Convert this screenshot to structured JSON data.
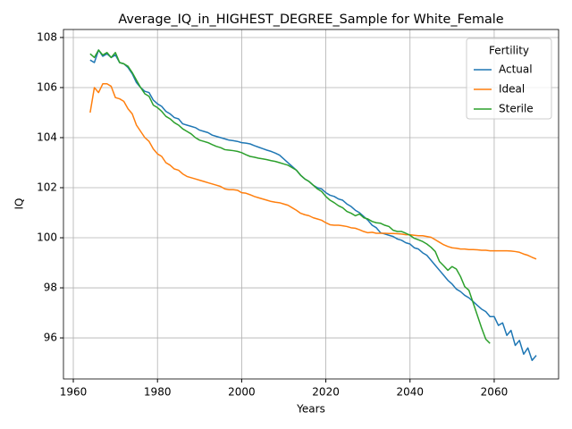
{
  "chart_data": {
    "type": "line",
    "title": "Average_IQ_in_HIGHEST_DEGREE_Sample for White_Female",
    "x_label": "Years",
    "y_label": "IQ",
    "legend_title": "Fertility",
    "legend": "upper right",
    "grid": true,
    "x": [
      1964,
      1965,
      1966,
      1967,
      1968,
      1969,
      1970,
      1971,
      1972,
      1973,
      1974,
      1975,
      1976,
      1977,
      1978,
      1979,
      1980,
      1981,
      1982,
      1983,
      1984,
      1985,
      1986,
      1987,
      1988,
      1989,
      1990,
      1991,
      1992,
      1993,
      1994,
      1995,
      1996,
      1997,
      1998,
      1999,
      2000,
      2001,
      2002,
      2003,
      2004,
      2005,
      2006,
      2007,
      2008,
      2009,
      2010,
      2011,
      2012,
      2013,
      2014,
      2015,
      2016,
      2017,
      2018,
      2019,
      2020,
      2021,
      2022,
      2023,
      2024,
      2025,
      2026,
      2027,
      2028,
      2029,
      2030,
      2031,
      2032,
      2033,
      2034,
      2035,
      2036,
      2037,
      2038,
      2039,
      2040,
      2041,
      2042,
      2043,
      2044,
      2045,
      2046,
      2047,
      2048,
      2049,
      2050,
      2051,
      2052,
      2053,
      2054,
      2055,
      2056,
      2057,
      2058,
      2059,
      2060,
      2061,
      2062,
      2063,
      2064,
      2065,
      2066,
      2067,
      2068,
      2069,
      2070
    ],
    "series": [
      {
        "name": "Actual",
        "color": "#1f77b4",
        "values": [
          107.1,
          107.0,
          107.5,
          107.25,
          107.35,
          107.2,
          107.3,
          107.0,
          106.95,
          106.8,
          106.55,
          106.2,
          106.0,
          105.85,
          105.8,
          105.5,
          105.35,
          105.25,
          105.05,
          104.95,
          104.8,
          104.75,
          104.55,
          104.5,
          104.45,
          104.4,
          104.3,
          104.25,
          104.2,
          104.1,
          104.05,
          104.0,
          103.95,
          103.9,
          103.88,
          103.85,
          103.8,
          103.78,
          103.75,
          103.68,
          103.62,
          103.56,
          103.5,
          103.45,
          103.38,
          103.3,
          103.15,
          103.0,
          102.85,
          102.7,
          102.5,
          102.35,
          102.25,
          102.1,
          102.0,
          101.95,
          101.8,
          101.7,
          101.65,
          101.55,
          101.5,
          101.35,
          101.25,
          101.1,
          101.0,
          100.85,
          100.7,
          100.5,
          100.4,
          100.2,
          100.15,
          100.1,
          100.05,
          99.95,
          99.9,
          99.8,
          99.75,
          99.6,
          99.55,
          99.4,
          99.3,
          99.1,
          98.9,
          98.7,
          98.5,
          98.3,
          98.15,
          97.95,
          97.85,
          97.7,
          97.6,
          97.45,
          97.3,
          97.15,
          97.05,
          96.85,
          96.85,
          96.5,
          96.6,
          96.1,
          96.3,
          95.7,
          95.9,
          95.35,
          95.6,
          95.1,
          95.3
        ]
      },
      {
        "name": "Ideal",
        "color": "#ff7f0e",
        "values": [
          105.0,
          106.0,
          105.8,
          106.15,
          106.15,
          106.05,
          105.6,
          105.55,
          105.45,
          105.15,
          104.95,
          104.5,
          104.25,
          104.0,
          103.85,
          103.55,
          103.35,
          103.25,
          103.0,
          102.9,
          102.75,
          102.7,
          102.55,
          102.45,
          102.4,
          102.35,
          102.3,
          102.25,
          102.2,
          102.15,
          102.1,
          102.05,
          101.95,
          101.92,
          101.92,
          101.9,
          101.8,
          101.78,
          101.72,
          101.65,
          101.6,
          101.55,
          101.5,
          101.45,
          101.42,
          101.4,
          101.35,
          101.3,
          101.2,
          101.1,
          100.98,
          100.92,
          100.88,
          100.8,
          100.75,
          100.7,
          100.6,
          100.52,
          100.5,
          100.5,
          100.48,
          100.45,
          100.4,
          100.38,
          100.32,
          100.25,
          100.2,
          100.22,
          100.18,
          100.18,
          100.18,
          100.17,
          100.17,
          100.16,
          100.15,
          100.12,
          100.12,
          100.1,
          100.08,
          100.08,
          100.05,
          100.02,
          99.92,
          99.82,
          99.72,
          99.65,
          99.6,
          99.58,
          99.55,
          99.55,
          99.53,
          99.53,
          99.52,
          99.5,
          99.5,
          99.48,
          99.48,
          99.48,
          99.48,
          99.48,
          99.47,
          99.45,
          99.42,
          99.35,
          99.3,
          99.22,
          99.15
        ]
      },
      {
        "name": "Sterile",
        "color": "#2ca02c",
        "values": [
          107.35,
          107.2,
          107.5,
          107.3,
          107.4,
          107.2,
          107.4,
          107.0,
          106.95,
          106.85,
          106.6,
          106.3,
          106.0,
          105.75,
          105.65,
          105.3,
          105.2,
          105.05,
          104.85,
          104.75,
          104.6,
          104.5,
          104.35,
          104.25,
          104.15,
          104.0,
          103.9,
          103.85,
          103.8,
          103.72,
          103.65,
          103.6,
          103.52,
          103.5,
          103.48,
          103.45,
          103.4,
          103.32,
          103.25,
          103.22,
          103.18,
          103.15,
          103.12,
          103.08,
          103.05,
          103.0,
          102.95,
          102.9,
          102.8,
          102.7,
          102.5,
          102.35,
          102.25,
          102.1,
          101.95,
          101.85,
          101.65,
          101.5,
          101.4,
          101.28,
          101.2,
          101.05,
          100.98,
          100.88,
          100.95,
          100.8,
          100.75,
          100.65,
          100.6,
          100.58,
          100.5,
          100.45,
          100.3,
          100.25,
          100.25,
          100.18,
          100.1,
          99.98,
          99.92,
          99.85,
          99.75,
          99.62,
          99.45,
          99.05,
          98.88,
          98.7,
          98.85,
          98.75,
          98.45,
          98.05,
          97.9,
          97.4,
          96.9,
          96.4,
          95.95,
          95.78,
          null,
          null,
          null,
          null,
          null,
          null,
          null,
          null,
          null,
          null,
          null
        ]
      }
    ],
    "xlim": [
      1957.66,
      2075.3
    ],
    "ylim": [
      94.36,
      108.32
    ],
    "xticks": [
      1960,
      1980,
      2000,
      2020,
      2040,
      2060
    ],
    "yticks": [
      96,
      98,
      100,
      102,
      104,
      106,
      108
    ]
  }
}
